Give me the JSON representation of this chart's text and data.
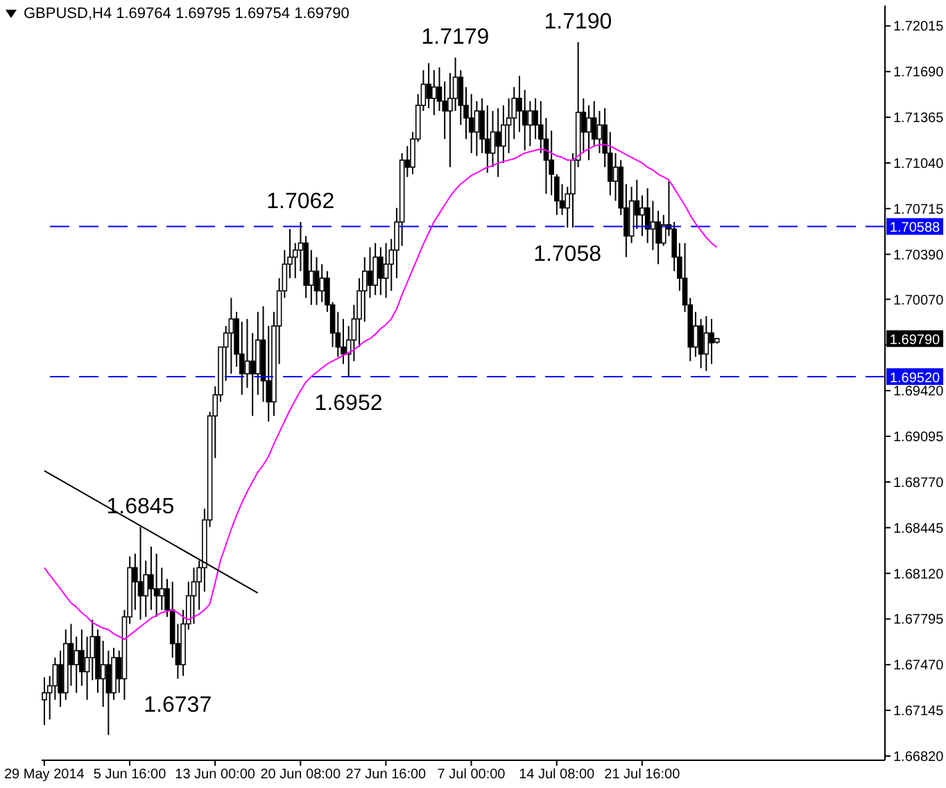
{
  "chart_data": {
    "type": "candlestick",
    "title": "GBPUSD,H4 1.69764 1.69795 1.69754 1.69790",
    "color": "#000000",
    "categories": [
      "29 May 2014",
      null,
      null,
      null,
      null,
      null,
      null,
      null,
      null,
      null,
      null,
      null,
      null,
      null,
      null,
      null,
      "5 Jun 16:00",
      null,
      null,
      null,
      null,
      null,
      null,
      null,
      null,
      null,
      null,
      null,
      null,
      null,
      null,
      null,
      "13 Jun 00:00",
      null,
      null,
      null,
      null,
      null,
      null,
      null,
      null,
      null,
      null,
      null,
      null,
      null,
      null,
      null,
      "20 Jun 08:00",
      null,
      null,
      null,
      null,
      null,
      null,
      null,
      null,
      null,
      null,
      null,
      null,
      null,
      null,
      null,
      "27 Jun 16:00",
      null,
      null,
      null,
      null,
      null,
      null,
      null,
      null,
      null,
      null,
      null,
      null,
      null,
      null,
      null,
      "7 Jul 00:00",
      null,
      null,
      null,
      null,
      null,
      null,
      null,
      null,
      null,
      null,
      null,
      null,
      null,
      null,
      null,
      "14 Jul 08:00",
      null,
      null,
      null,
      null,
      null,
      null,
      null,
      null,
      null,
      null,
      null,
      null,
      null,
      null,
      null,
      "21 Jul 16:00",
      null,
      null,
      null,
      null,
      null,
      null,
      null,
      null,
      null,
      null,
      null,
      null,
      null,
      null,
      null,
      null,
      null,
      null,
      null,
      null,
      null,
      null,
      null,
      null,
      null,
      null,
      null,
      null,
      null,
      null,
      null,
      null,
      null,
      null,
      null,
      null,
      null,
      null,
      null,
      null,
      null,
      null,
      null,
      null,
      null
    ],
    "ohlc": [
      [
        1.6722,
        1.6738,
        1.6704,
        1.6727
      ],
      [
        1.6727,
        1.6739,
        1.6708,
        1.6732
      ],
      [
        1.6732,
        1.6752,
        1.6722,
        1.6747
      ],
      [
        1.6747,
        1.6757,
        1.6717,
        1.6727
      ],
      [
        1.6727,
        1.6772,
        1.6722,
        1.6762
      ],
      [
        1.6762,
        1.6776,
        1.6732,
        1.6747
      ],
      [
        1.6747,
        1.6767,
        1.6727,
        1.6757
      ],
      [
        1.6757,
        1.6772,
        1.6732,
        1.6742
      ],
      [
        1.6742,
        1.6767,
        1.6722,
        1.6752
      ],
      [
        1.6752,
        1.6779,
        1.6736,
        1.6767
      ],
      [
        1.6767,
        1.6772,
        1.6727,
        1.6737
      ],
      [
        1.6737,
        1.6764,
        1.6717,
        1.6747
      ],
      [
        1.6747,
        1.6757,
        1.6697,
        1.6727
      ],
      [
        1.6727,
        1.6759,
        1.6722,
        1.6752
      ],
      [
        1.6752,
        1.6757,
        1.6727,
        1.6737
      ],
      [
        1.6737,
        1.6786,
        1.6722,
        1.6781
      ],
      [
        1.6781,
        1.6824,
        1.6776,
        1.6816
      ],
      [
        1.6816,
        1.6826,
        1.6786,
        1.6806
      ],
      [
        1.6806,
        1.6845,
        1.6779,
        1.6796
      ],
      [
        1.6796,
        1.6821,
        1.6781,
        1.6811
      ],
      [
        1.6811,
        1.6831,
        1.6786,
        1.6801
      ],
      [
        1.6801,
        1.6826,
        1.6781,
        1.6796
      ],
      [
        1.6796,
        1.6816,
        1.6786,
        1.6801
      ],
      [
        1.6801,
        1.6808,
        1.6781,
        1.6786
      ],
      [
        1.6786,
        1.6806,
        1.6752,
        1.6762
      ],
      [
        1.6762,
        1.6776,
        1.6737,
        1.6747
      ],
      [
        1.6747,
        1.6786,
        1.6739,
        1.6776
      ],
      [
        1.6776,
        1.6806,
        1.6772,
        1.6796
      ],
      [
        1.6796,
        1.6816,
        1.6776,
        1.6806
      ],
      [
        1.6806,
        1.6821,
        1.6786,
        1.6816
      ],
      [
        1.6816,
        1.6858,
        1.6799,
        1.685
      ],
      [
        1.685,
        1.6927,
        1.6845,
        1.6924
      ],
      [
        1.6924,
        1.6945,
        1.6894,
        1.6939
      ],
      [
        1.6939,
        1.6973,
        1.6934,
        1.6973
      ],
      [
        1.6973,
        1.6988,
        1.6949,
        1.6983
      ],
      [
        1.6983,
        1.7008,
        1.6954,
        1.6993
      ],
      [
        1.6993,
        1.6998,
        1.6959,
        1.6968
      ],
      [
        1.6968,
        1.6991,
        1.6939,
        1.6954
      ],
      [
        1.6954,
        1.6993,
        1.6944,
        1.6963
      ],
      [
        1.6963,
        1.6983,
        1.6924,
        1.6954
      ],
      [
        1.6954,
        1.6998,
        1.6939,
        1.6978
      ],
      [
        1.6978,
        1.7002,
        1.6934,
        1.6949
      ],
      [
        1.6949,
        1.6988,
        1.692,
        1.6934
      ],
      [
        1.6934,
        1.6998,
        1.6924,
        1.6988
      ],
      [
        1.6988,
        1.7022,
        1.6961,
        1.7013
      ],
      [
        1.7013,
        1.7042,
        1.7008,
        1.7032
      ],
      [
        1.7032,
        1.7057,
        1.7022,
        1.7037
      ],
      [
        1.7037,
        1.7047,
        1.7022,
        1.7042
      ],
      [
        1.7042,
        1.7062,
        1.7027,
        1.7047
      ],
      [
        1.7047,
        1.7052,
        1.7008,
        1.7017
      ],
      [
        1.7017,
        1.7042,
        1.7003,
        1.7027
      ],
      [
        1.7027,
        1.7037,
        1.7003,
        1.7013
      ],
      [
        1.7013,
        1.7032,
        1.7005,
        1.7022
      ],
      [
        1.7022,
        1.7027,
        1.6998,
        1.7003
      ],
      [
        1.7003,
        1.7005,
        1.6973,
        1.6983
      ],
      [
        1.6983,
        1.6998,
        1.6966,
        1.6973
      ],
      [
        1.6973,
        1.6993,
        1.6961,
        1.6968
      ],
      [
        1.6968,
        1.6988,
        1.6952,
        1.6978
      ],
      [
        1.6978,
        1.7003,
        1.6963,
        1.6993
      ],
      [
        1.6993,
        1.7022,
        1.6973,
        1.7013
      ],
      [
        1.7013,
        1.7037,
        1.6991,
        1.7027
      ],
      [
        1.7027,
        1.7044,
        1.7008,
        1.7017
      ],
      [
        1.7017,
        1.7047,
        1.701,
        1.7037
      ],
      [
        1.7037,
        1.7044,
        1.701,
        1.7022
      ],
      [
        1.7022,
        1.7047,
        1.7008,
        1.7032
      ],
      [
        1.7032,
        1.705,
        1.7013,
        1.7042
      ],
      [
        1.7042,
        1.7072,
        1.7022,
        1.7062
      ],
      [
        1.7062,
        1.7111,
        1.7045,
        1.7106
      ],
      [
        1.7106,
        1.7116,
        1.7094,
        1.7101
      ],
      [
        1.7101,
        1.7126,
        1.7096,
        1.7121
      ],
      [
        1.7121,
        1.7153,
        1.7119,
        1.7145
      ],
      [
        1.7145,
        1.717,
        1.7141,
        1.716
      ],
      [
        1.716,
        1.7175,
        1.7143,
        1.715
      ],
      [
        1.715,
        1.717,
        1.7138,
        1.7158
      ],
      [
        1.7158,
        1.7172,
        1.7141,
        1.7148
      ],
      [
        1.7148,
        1.7162,
        1.7121,
        1.7141
      ],
      [
        1.7141,
        1.7168,
        1.7101,
        1.715
      ],
      [
        1.715,
        1.7179,
        1.7141,
        1.7165
      ],
      [
        1.7165,
        1.717,
        1.7131,
        1.7145
      ],
      [
        1.7145,
        1.7158,
        1.7121,
        1.7136
      ],
      [
        1.7136,
        1.7153,
        1.7111,
        1.7126
      ],
      [
        1.7126,
        1.7148,
        1.7109,
        1.7141
      ],
      [
        1.7141,
        1.715,
        1.7111,
        1.7121
      ],
      [
        1.7121,
        1.7145,
        1.7097,
        1.7111
      ],
      [
        1.7111,
        1.7141,
        1.7101,
        1.7126
      ],
      [
        1.7126,
        1.7143,
        1.7094,
        1.7116
      ],
      [
        1.7116,
        1.7145,
        1.7104,
        1.7131
      ],
      [
        1.7131,
        1.715,
        1.7111,
        1.7136
      ],
      [
        1.7136,
        1.7158,
        1.7121,
        1.715
      ],
      [
        1.715,
        1.7166,
        1.7126,
        1.7141
      ],
      [
        1.7141,
        1.7156,
        1.7113,
        1.7131
      ],
      [
        1.7131,
        1.7148,
        1.7116,
        1.7141
      ],
      [
        1.7141,
        1.715,
        1.7121,
        1.7131
      ],
      [
        1.7131,
        1.7148,
        1.7111,
        1.7121
      ],
      [
        1.7121,
        1.7136,
        1.7082,
        1.7106
      ],
      [
        1.7106,
        1.7127,
        1.7081,
        1.7096
      ],
      [
        1.7094,
        1.7096,
        1.7067,
        1.7077
      ],
      [
        1.7077,
        1.7089,
        1.7067,
        1.7072
      ],
      [
        1.7072,
        1.7087,
        1.7058,
        1.7082
      ],
      [
        1.7082,
        1.7111,
        1.7058,
        1.7106
      ],
      [
        1.7106,
        1.719,
        1.7101,
        1.714
      ],
      [
        1.714,
        1.715,
        1.7111,
        1.7126
      ],
      [
        1.7126,
        1.7145,
        1.7106,
        1.7136
      ],
      [
        1.7136,
        1.7148,
        1.7116,
        1.7121
      ],
      [
        1.7121,
        1.7141,
        1.7111,
        1.7131
      ],
      [
        1.7131,
        1.7143,
        1.7101,
        1.7111
      ],
      [
        1.7111,
        1.7126,
        1.7081,
        1.7091
      ],
      [
        1.7091,
        1.7111,
        1.7077,
        1.7101
      ],
      [
        1.7101,
        1.7106,
        1.7067,
        1.7072
      ],
      [
        1.7072,
        1.7089,
        1.7037,
        1.7052
      ],
      [
        1.7052,
        1.7087,
        1.7047,
        1.7077
      ],
      [
        1.7077,
        1.7092,
        1.7057,
        1.7067
      ],
      [
        1.7067,
        1.7081,
        1.7052,
        1.7072
      ],
      [
        1.7072,
        1.7086,
        1.7047,
        1.7057
      ],
      [
        1.7057,
        1.7077,
        1.7042,
        1.7062
      ],
      [
        1.7062,
        1.707,
        1.7032,
        1.7047
      ],
      [
        1.7047,
        1.7067,
        1.7045,
        1.706
      ],
      [
        1.706,
        1.7091,
        1.7052,
        1.7057
      ],
      [
        1.7057,
        1.7062,
        1.7027,
        1.7037
      ],
      [
        1.7037,
        1.7047,
        1.7013,
        1.7022
      ],
      [
        1.7022,
        1.7047,
        1.6998,
        1.7003
      ],
      [
        1.7003,
        1.7008,
        1.6963,
        1.6973
      ],
      [
        1.6973,
        1.6998,
        1.6966,
        1.6988
      ],
      [
        1.6988,
        1.6993,
        1.6958,
        1.6968
      ],
      [
        1.6968,
        1.6995,
        1.6956,
        1.6983
      ],
      [
        1.6983,
        1.6993,
        1.6961,
        1.6976
      ],
      [
        1.69764,
        1.69795,
        1.69754,
        1.6979
      ],
      null,
      null,
      null,
      null,
      null,
      null,
      null,
      null,
      null,
      null,
      null,
      null,
      null,
      null,
      null,
      null,
      null,
      null,
      null,
      null,
      null,
      null,
      null,
      null,
      null,
      null,
      null,
      null,
      null,
      null,
      null
    ],
    "series": [
      {
        "type": "line",
        "color": "#ff00ff",
        "values": [
          1.6816,
          1.6811,
          1.6806,
          1.6801,
          1.6796,
          1.6791,
          1.6788,
          1.6784,
          1.6781,
          1.6777,
          1.6775,
          1.6773,
          1.6772,
          1.6769,
          1.6767,
          1.6765,
          1.6768,
          1.6771,
          1.6774,
          1.6777,
          1.678,
          1.6782,
          1.6784,
          1.6785,
          1.6786,
          1.6784,
          1.6781,
          1.6779,
          1.6781,
          1.6783,
          1.6786,
          1.679,
          1.6805,
          1.6821,
          1.6832,
          1.6843,
          1.6853,
          1.6862,
          1.687,
          1.6877,
          1.6884,
          1.6889,
          1.6895,
          1.6904,
          1.6912,
          1.692,
          1.6928,
          1.6935,
          1.6942,
          1.6948,
          1.6952,
          1.6955,
          1.6958,
          1.6961,
          1.6963,
          1.6965,
          1.6967,
          1.6969,
          1.6971,
          1.6974,
          1.6977,
          1.6979,
          1.6982,
          1.6986,
          1.6989,
          1.6993,
          1.7,
          1.701,
          1.7019,
          1.7028,
          1.7037,
          1.7046,
          1.7054,
          1.7062,
          1.7068,
          1.7074,
          1.708,
          1.7085,
          1.7089,
          1.7092,
          1.7095,
          1.7097,
          1.7099,
          1.7101,
          1.7102,
          1.7104,
          1.7105,
          1.7106,
          1.7107,
          1.7109,
          1.7111,
          1.7112,
          1.7113,
          1.7114,
          1.7113,
          1.7111,
          1.7109,
          1.7108,
          1.7106,
          1.7106,
          1.7109,
          1.7112,
          1.7114,
          1.7116,
          1.7117,
          1.7117,
          1.7116,
          1.7114,
          1.7112,
          1.711,
          1.7108,
          1.7106,
          1.7104,
          1.7101,
          1.7099,
          1.7096,
          1.7094,
          1.7092,
          1.7086,
          1.708,
          1.7074,
          1.7067,
          1.7061,
          1.7056,
          1.7051,
          1.7047,
          1.7044,
          null,
          null,
          null,
          null,
          null,
          null,
          null,
          null,
          null,
          null,
          null,
          null,
          null,
          null,
          null,
          null,
          null,
          null,
          null,
          null,
          null,
          null,
          null,
          null,
          null,
          null,
          null,
          null,
          null,
          null,
          null
        ]
      },
      {
        "type": "line",
        "color": "#000000",
        "values": [
          1.6885,
          null,
          null,
          null,
          null,
          null,
          null,
          null,
          null,
          null,
          null,
          null,
          null,
          null,
          null,
          null,
          null,
          null,
          null,
          null,
          null,
          null,
          null,
          null,
          null,
          null,
          null,
          null,
          null,
          null,
          null,
          null,
          null,
          null,
          null,
          null,
          null,
          null,
          null,
          null,
          1.6798,
          null,
          null,
          null,
          null,
          null,
          null,
          null,
          null,
          null,
          null,
          null,
          null,
          null,
          null,
          null,
          null,
          null,
          null,
          null,
          null,
          null,
          null,
          null,
          null,
          null,
          null,
          null,
          null,
          null,
          null,
          null,
          null,
          null,
          null,
          null,
          null,
          null,
          null,
          null,
          null,
          null,
          null,
          null,
          null,
          null,
          null,
          null,
          null,
          null,
          null,
          null,
          null,
          null,
          null,
          null,
          null,
          null,
          null,
          null,
          null,
          null,
          null,
          null,
          null,
          null,
          null,
          null,
          null,
          null,
          null,
          null,
          null,
          null,
          null,
          null,
          null,
          null,
          null,
          null,
          null,
          null,
          null,
          null,
          null,
          null,
          null,
          null,
          null,
          null,
          null,
          null,
          null,
          null,
          null,
          null,
          null,
          null,
          null,
          null,
          null,
          null,
          null,
          null,
          null,
          null,
          null,
          null,
          null,
          null,
          null,
          null,
          null,
          null,
          null,
          null,
          null,
          null
        ]
      }
    ],
    "ylim": [
      1.6679,
      1.7216
    ],
    "yticks": [
      1.72015,
      {
        "value": 1.7169,
        "label": "1.71690"
      },
      1.71365,
      {
        "value": 1.7104,
        "label": "1.71040"
      },
      1.70715,
      {
        "value": 1.7039,
        "label": "1.70390"
      },
      {
        "value": 1.7007,
        "label": "1.70070"
      },
      {
        "value": 1.69745,
        "label": null
      },
      {
        "value": 1.6942,
        "label": "1.69420"
      },
      1.69095,
      {
        "value": 1.6877,
        "label": "1.68770"
      },
      1.68445,
      {
        "value": 1.6812,
        "label": "1.68120"
      },
      1.67795,
      {
        "value": 1.6747,
        "label": "1.67470"
      },
      1.67145,
      {
        "value": 1.6682,
        "label": "1.66820"
      }
    ],
    "ref_lines": [
      {
        "axis": "y",
        "value": 1.70588,
        "label": "1.70588",
        "color": "#0000ff",
        "line_style": "dashed"
      },
      {
        "axis": "y",
        "value": 1.6952,
        "label": "1.69520",
        "color": "#0000ff",
        "line_style": "dashed"
      }
    ],
    "annotations": [
      {
        "text": "1.7179",
        "y": 1.7179
      },
      {
        "text": "1.7190",
        "y": 1.719
      },
      {
        "text": "1.7062",
        "y": 1.7062
      },
      {
        "text": "1.7058",
        "y": 1.7058
      },
      {
        "text": "1.6952",
        "y": 1.6952
      },
      {
        "text": "1.6845",
        "y": 1.6845
      },
      {
        "text": "1.6737",
        "y": 1.6737
      },
      "1.69790"
    ],
    "grid": false,
    "legend": false
  }
}
